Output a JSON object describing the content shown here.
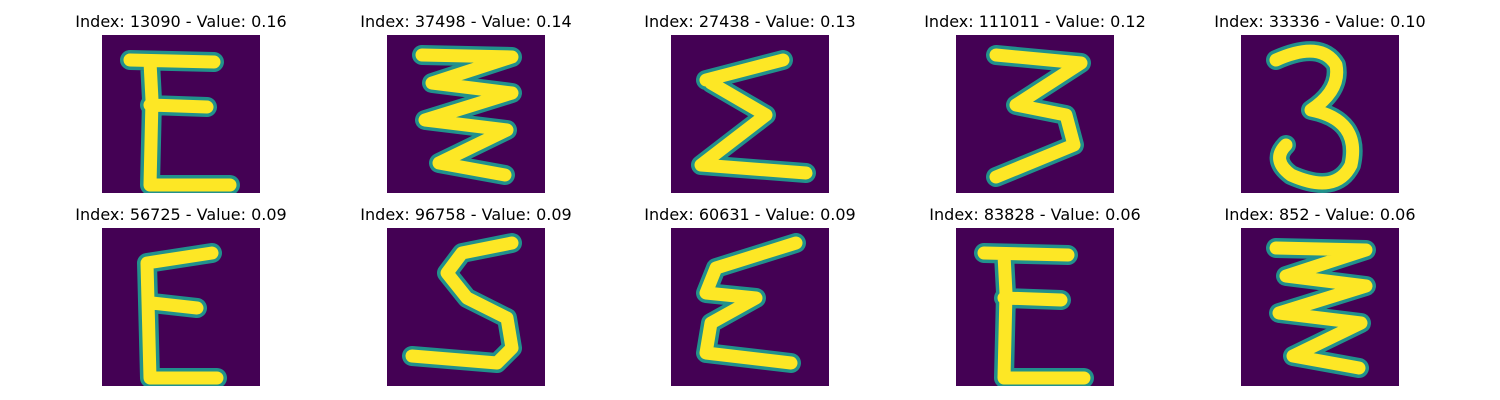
{
  "figure": {
    "background_color": "#ffffff",
    "colormap": "viridis",
    "image_background_color": "#440154",
    "image_stroke_color": "#fde725",
    "image_edge_color": "#21918c",
    "panels": [
      {
        "title": "Index: 13090 - Value: 0.16",
        "glyph": "E"
      },
      {
        "title": "Index: 37498 - Value: 0.14",
        "glyph": "zigzag"
      },
      {
        "title": "Index: 27438 - Value: 0.13",
        "glyph": "sigma"
      },
      {
        "title": "Index: 111011 - Value: 0.12",
        "glyph": "3"
      },
      {
        "title": "Index: 33336 - Value: 0.10",
        "glyph": "3"
      },
      {
        "title": "Index: 56725 - Value: 0.09",
        "glyph": "E"
      },
      {
        "title": "Index: 96758 - Value: 0.09",
        "glyph": "S"
      },
      {
        "title": "Index: 60631 - Value: 0.09",
        "glyph": "E-cursive"
      },
      {
        "title": "Index: 83828 - Value: 0.06",
        "glyph": "E"
      },
      {
        "title": "Index: 852 - Value: 0.06",
        "glyph": "zigzag"
      }
    ]
  }
}
